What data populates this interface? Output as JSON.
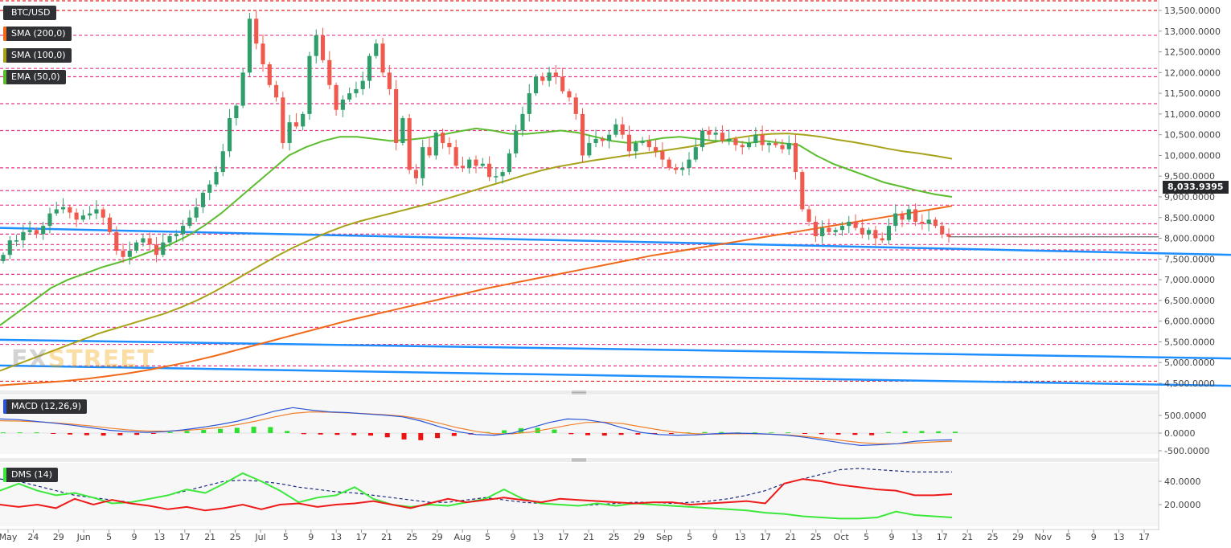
{
  "labels": {
    "symbol": "BTC/USD",
    "sma200": "SMA (200,0)",
    "sma100": "SMA (100,0)",
    "ema50": "EMA (50,0)",
    "macd": "MACD (12,26,9)",
    "dms": "DMS (14)",
    "watermark_fx": "FX",
    "watermark_street": "STREET"
  },
  "colors": {
    "candle_up": "#2f9e6a",
    "candle_down": "#f05a4e",
    "sma200": "#f06a1a",
    "sma100": "#a8a21a",
    "ema50": "#5bbd2e",
    "trendline": "#1f8fff",
    "level": "#e8378a",
    "macd_line": "#2a55d6",
    "signal_line": "#f0822e",
    "hist_up": "#2ee02e",
    "hist_down": "#ee1111",
    "dmi_plus": "#3be83b",
    "dmi_minus": "#ee1a1a",
    "adx": "#1a2a80"
  },
  "current_price": "8,033.9395",
  "chart_data": [
    {
      "type": "candlestick",
      "title": "BTC/USD",
      "x_ticks": [
        "May",
        "24",
        "29",
        "Jun",
        "5",
        "9",
        "13",
        "17",
        "21",
        "25",
        "Jul",
        "5",
        "9",
        "13",
        "17",
        "21",
        "25",
        "29",
        "Aug",
        "5",
        "9",
        "13",
        "17",
        "21",
        "25",
        "29",
        "Sep",
        "5",
        "9",
        "13",
        "17",
        "21",
        "25",
        "Oct",
        "5",
        "9",
        "13",
        "17",
        "21",
        "25",
        "29",
        "Nov",
        "5",
        "9",
        "13",
        "17"
      ],
      "y_ticks": [
        "4,500.0000",
        "5,000.0000",
        "5,500.0000",
        "6,000.0000",
        "6,500.0000",
        "7,000.0000",
        "7,500.0000",
        "8,000.0000",
        "8,500.0000",
        "9,000.0000",
        "9,500.0000",
        "10,000.0000",
        "10,500.0000",
        "11,000.0000",
        "11,500.0000",
        "12,000.0000",
        "12,500.0000",
        "13,000.0000",
        "13,500.0000"
      ],
      "ylim": [
        4400,
        13800
      ],
      "closes": [
        7600,
        7950,
        7950,
        8150,
        8200,
        8100,
        8300,
        8600,
        8700,
        8750,
        8620,
        8450,
        8550,
        8600,
        8700,
        8500,
        8150,
        7700,
        7550,
        7700,
        7900,
        8000,
        7850,
        7600,
        7900,
        8050,
        8100,
        8300,
        8500,
        8750,
        9100,
        9300,
        9600,
        10100,
        10900,
        11200,
        12000,
        13300,
        12700,
        12200,
        11700,
        11400,
        10300,
        10800,
        10700,
        11000,
        12400,
        12900,
        12300,
        11700,
        11100,
        11350,
        11500,
        11600,
        11800,
        12400,
        12700,
        12000,
        11600,
        10300,
        10900,
        9650,
        9450,
        10200,
        10000,
        10550,
        10300,
        10200,
        9750,
        9700,
        9900,
        9750,
        9800,
        9480,
        9500,
        9600,
        10050,
        10600,
        11000,
        11500,
        11900,
        11800,
        12000,
        11900,
        11550,
        11400,
        11000,
        10000,
        10300,
        10400,
        10350,
        10500,
        10750,
        10500,
        10100,
        10300,
        10350,
        10200,
        10100,
        9900,
        9700,
        9650,
        9700,
        9900,
        10200,
        10600,
        10500,
        10550,
        10350,
        10400,
        10250,
        10200,
        10300,
        10500,
        10250,
        10300,
        10250,
        10150,
        10300,
        9600,
        8700,
        8400,
        8050,
        8250,
        8150,
        8200,
        8300,
        8400,
        8250,
        8100,
        8200,
        8000,
        7950,
        8300,
        8600,
        8450,
        8700,
        8400,
        8350,
        8450,
        8300,
        8100,
        8034
      ],
      "series": [
        {
          "name": "SMA (200,0)",
          "values": [
            4450,
            4470,
            4490,
            4510,
            4530,
            4550,
            4580,
            4610,
            4650,
            4690,
            4730,
            4780,
            4830,
            4890,
            4950,
            5010,
            5080,
            5150,
            5230,
            5310,
            5390,
            5470,
            5550,
            5630,
            5710,
            5790,
            5870,
            5950,
            6030,
            6100,
            6170,
            6240,
            6310,
            6380,
            6450,
            6520,
            6590,
            6660,
            6730,
            6800,
            6860,
            6920,
            6980,
            7040,
            7100,
            7160,
            7220,
            7280,
            7340,
            7400,
            7460,
            7520,
            7580,
            7630,
            7680,
            7730,
            7780,
            7830,
            7880,
            7930,
            7980,
            8030,
            8080,
            8130,
            8180,
            8230,
            8280,
            8330,
            8380,
            8430,
            8480,
            8530,
            8580,
            8630,
            8680,
            8730,
            8780
          ]
        },
        {
          "name": "SMA (100,0)",
          "values": [
            4800,
            4950,
            5100,
            5250,
            5400,
            5550,
            5700,
            5820,
            5940,
            6060,
            6180,
            6330,
            6500,
            6700,
            6920,
            7150,
            7380,
            7600,
            7800,
            7980,
            8150,
            8300,
            8420,
            8520,
            8620,
            8720,
            8820,
            8930,
            9050,
            9170,
            9290,
            9410,
            9530,
            9640,
            9730,
            9800,
            9870,
            9930,
            9990,
            10040,
            10090,
            10150,
            10210,
            10280,
            10360,
            10430,
            10490,
            10520,
            10530,
            10500,
            10450,
            10380,
            10320,
            10250,
            10170,
            10100,
            10050,
            9990,
            9920
          ]
        },
        {
          "name": "EMA (50,0)",
          "values": [
            5900,
            6200,
            6500,
            6800,
            7000,
            7150,
            7300,
            7420,
            7550,
            7700,
            7850,
            8050,
            8300,
            8600,
            8950,
            9300,
            9650,
            10000,
            10200,
            10350,
            10450,
            10450,
            10400,
            10350,
            10380,
            10420,
            10500,
            10580,
            10650,
            10600,
            10520,
            10520,
            10560,
            10600,
            10550,
            10450,
            10350,
            10300,
            10350,
            10420,
            10450,
            10400,
            10350,
            10350,
            10300,
            10350,
            10300,
            10250,
            10000,
            9800,
            9650,
            9500,
            9350,
            9250,
            9150,
            9060,
            9000
          ]
        }
      ],
      "levels": [
        13500,
        12900,
        12100,
        11900,
        11250,
        10600,
        9700,
        9150,
        8800,
        8350,
        8100,
        7850,
        7720,
        7480,
        7130,
        6880,
        6650,
        6420,
        6230,
        5850,
        5440,
        4920,
        4550
      ],
      "trendlines": [
        {
          "from": 8250,
          "to": 7600
        },
        {
          "from": 5550,
          "to": 5100
        },
        {
          "from": 4930,
          "to": 4440
        }
      ]
    },
    {
      "type": "bar",
      "title": "MACD (12,26,9)",
      "y_ticks": [
        "500.0000",
        "0.0000",
        "-500.0000"
      ],
      "ylim": [
        -600,
        800
      ],
      "series": [
        {
          "name": "MACD",
          "values": [
            400,
            380,
            330,
            280,
            220,
            150,
            80,
            40,
            20,
            40,
            90,
            160,
            240,
            340,
            480,
            620,
            720,
            650,
            600,
            580,
            540,
            510,
            460,
            340,
            180,
            40,
            -40,
            -60,
            0,
            150,
            300,
            400,
            380,
            300,
            150,
            20,
            -40,
            -60,
            -50,
            -20,
            0,
            -10,
            -30,
            -60,
            -120,
            -200,
            -280,
            -350,
            -330,
            -300,
            -230,
            -200,
            -190
          ]
        },
        {
          "name": "Signal",
          "values": [
            350,
            340,
            320,
            290,
            250,
            200,
            140,
            90,
            60,
            55,
            70,
            110,
            160,
            240,
            340,
            460,
            560,
            600,
            590,
            570,
            550,
            520,
            480,
            400,
            280,
            150,
            50,
            -20,
            -20,
            30,
            120,
            220,
            300,
            310,
            270,
            180,
            90,
            20,
            -20,
            -30,
            -20,
            -20,
            -30,
            -50,
            -90,
            -150,
            -210,
            -270,
            -300,
            -300,
            -280,
            -250,
            -230
          ]
        }
      ],
      "histogram": [
        20,
        20,
        20,
        -20,
        -40,
        -60,
        -70,
        -60,
        -50,
        -20,
        30,
        60,
        90,
        120,
        150,
        180,
        170,
        60,
        -30,
        -40,
        -50,
        -60,
        -70,
        -120,
        -180,
        -200,
        -140,
        -80,
        -40,
        30,
        80,
        140,
        150,
        100,
        -30,
        -60,
        -70,
        -50,
        -40,
        -30,
        -20,
        20,
        30,
        30,
        20,
        20,
        20,
        20,
        -20,
        -30,
        -40,
        -50,
        -60,
        30,
        50,
        60,
        50,
        40
      ]
    },
    {
      "type": "line",
      "title": "DMS (14)",
      "y_ticks": [
        "40.0000",
        "20.0000"
      ],
      "ylim": [
        3,
        52
      ],
      "series": [
        {
          "name": "+DI",
          "values": [
            32,
            38,
            32,
            28,
            30,
            26,
            21,
            22,
            25,
            28,
            33,
            30,
            38,
            47,
            40,
            32,
            22,
            26,
            28,
            35,
            25,
            20,
            18,
            20,
            19,
            22,
            25,
            33,
            25,
            21,
            20,
            19,
            21,
            19,
            21,
            20,
            19,
            18,
            17,
            16,
            15,
            13,
            12,
            10,
            9,
            8,
            8,
            9,
            14,
            11,
            10,
            9
          ]
        },
        {
          "name": "-DI",
          "values": [
            20,
            18,
            20,
            17,
            25,
            20,
            24,
            21,
            19,
            16,
            18,
            15,
            17,
            20,
            16,
            20,
            21,
            18,
            20,
            21,
            23,
            20,
            17,
            21,
            25,
            22,
            24,
            26,
            24,
            22,
            25,
            24,
            23,
            22,
            21,
            22,
            22,
            20,
            21,
            22,
            23,
            21,
            38,
            42,
            40,
            37,
            35,
            33,
            32,
            28,
            28,
            29
          ]
        },
        {
          "name": "ADX",
          "values": [
            42,
            40,
            36,
            32,
            28,
            26,
            24,
            22,
            25,
            28,
            32,
            36,
            40,
            41,
            40,
            38,
            35,
            33,
            31,
            30,
            28,
            26,
            24,
            22,
            22,
            24,
            26,
            24,
            22,
            21,
            20,
            19,
            20,
            21,
            22,
            22,
            21,
            22,
            23,
            25,
            28,
            32,
            38,
            42,
            46,
            50,
            51,
            50,
            49,
            48,
            48,
            48
          ]
        }
      ]
    }
  ]
}
